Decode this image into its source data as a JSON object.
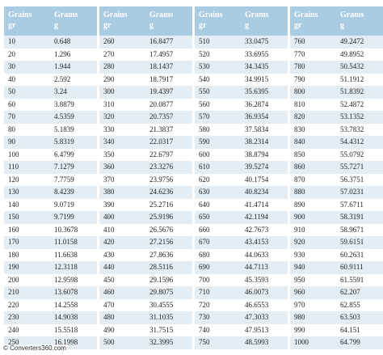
{
  "tables": [
    {
      "header": [
        "Grains",
        "gr",
        "Grams",
        "g"
      ],
      "rows": [
        [
          "10",
          "0.648"
        ],
        [
          "20",
          "1.296"
        ],
        [
          "30",
          "1.944"
        ],
        [
          "40",
          "2.592"
        ],
        [
          "50",
          "3.24"
        ],
        [
          "60",
          "3.8879"
        ],
        [
          "70",
          "4.5359"
        ],
        [
          "80",
          "5.1839"
        ],
        [
          "90",
          "5.8319"
        ],
        [
          "100",
          "6.4799"
        ],
        [
          "110",
          "7.1279"
        ],
        [
          "120",
          "7.7759"
        ],
        [
          "130",
          "8.4239"
        ],
        [
          "140",
          "9.0719"
        ],
        [
          "150",
          "9.7199"
        ],
        [
          "160",
          "10.3678"
        ],
        [
          "170",
          "11.0158"
        ],
        [
          "180",
          "11.6638"
        ],
        [
          "190",
          "12.3118"
        ],
        [
          "200",
          "12.9598"
        ],
        [
          "210",
          "13.6078"
        ],
        [
          "220",
          "14.2558"
        ],
        [
          "230",
          "14.9038"
        ],
        [
          "240",
          "15.5518"
        ],
        [
          "250",
          "16.1998"
        ]
      ]
    },
    {
      "header": [
        "Grains",
        "gr",
        "Grams",
        "g"
      ],
      "rows": [
        [
          "260",
          "16.8477"
        ],
        [
          "270",
          "17.4957"
        ],
        [
          "280",
          "18.1437"
        ],
        [
          "290",
          "18.7917"
        ],
        [
          "300",
          "19.4397"
        ],
        [
          "310",
          "20.0877"
        ],
        [
          "320",
          "20.7357"
        ],
        [
          "330",
          "21.3837"
        ],
        [
          "340",
          "22.0317"
        ],
        [
          "350",
          "22.6797"
        ],
        [
          "360",
          "23.3276"
        ],
        [
          "370",
          "23.9756"
        ],
        [
          "380",
          "24.6236"
        ],
        [
          "390",
          "25.2716"
        ],
        [
          "400",
          "25.9196"
        ],
        [
          "410",
          "26.5676"
        ],
        [
          "420",
          "27.2156"
        ],
        [
          "430",
          "27.8636"
        ],
        [
          "440",
          "28.5116"
        ],
        [
          "450",
          "29.1596"
        ],
        [
          "460",
          "29.8075"
        ],
        [
          "470",
          "30.4555"
        ],
        [
          "480",
          "31.1035"
        ],
        [
          "490",
          "31.7515"
        ],
        [
          "500",
          "32.3995"
        ]
      ]
    },
    {
      "header": [
        "Grains",
        "gr",
        "Grams",
        "g"
      ],
      "rows": [
        [
          "510",
          "33.0475"
        ],
        [
          "520",
          "33.6955"
        ],
        [
          "530",
          "34.3435"
        ],
        [
          "540",
          "34.9915"
        ],
        [
          "550",
          "35.6395"
        ],
        [
          "560",
          "36.2874"
        ],
        [
          "570",
          "36.9354"
        ],
        [
          "580",
          "37.5834"
        ],
        [
          "590",
          "38.2314"
        ],
        [
          "600",
          "38.8794"
        ],
        [
          "610",
          "39.5274"
        ],
        [
          "620",
          "40.1754"
        ],
        [
          "630",
          "40.8234"
        ],
        [
          "640",
          "41.4714"
        ],
        [
          "650",
          "42.1194"
        ],
        [
          "660",
          "42.7673"
        ],
        [
          "670",
          "43.4153"
        ],
        [
          "680",
          "44.0633"
        ],
        [
          "690",
          "44.7113"
        ],
        [
          "700",
          "45.3593"
        ],
        [
          "710",
          "46.0073"
        ],
        [
          "720",
          "46.6553"
        ],
        [
          "730",
          "47.3033"
        ],
        [
          "740",
          "47.9513"
        ],
        [
          "750",
          "48.5993"
        ]
      ]
    },
    {
      "header": [
        "Grains",
        "gr",
        "Grams",
        "g"
      ],
      "rows": [
        [
          "760",
          "49.2472"
        ],
        [
          "770",
          "49.8952"
        ],
        [
          "780",
          "50.5432"
        ],
        [
          "790",
          "51.1912"
        ],
        [
          "800",
          "51.8392"
        ],
        [
          "810",
          "52.4872"
        ],
        [
          "820",
          "53.1352"
        ],
        [
          "830",
          "53.7832"
        ],
        [
          "840",
          "54.4312"
        ],
        [
          "850",
          "55.0792"
        ],
        [
          "860",
          "55.7271"
        ],
        [
          "870",
          "56.3751"
        ],
        [
          "880",
          "57.0231"
        ],
        [
          "890",
          "57.6711"
        ],
        [
          "900",
          "58.3191"
        ],
        [
          "910",
          "58.9671"
        ],
        [
          "920",
          "59.6151"
        ],
        [
          "930",
          "60.2631"
        ],
        [
          "940",
          "60.9111"
        ],
        [
          "950",
          "61.5591"
        ],
        [
          "960",
          "62.207"
        ],
        [
          "970",
          "62.855"
        ],
        [
          "980",
          "63.503"
        ],
        [
          "990",
          "64.151"
        ],
        [
          "1000",
          "64.799"
        ]
      ]
    }
  ],
  "footer": "© Converters360.com"
}
